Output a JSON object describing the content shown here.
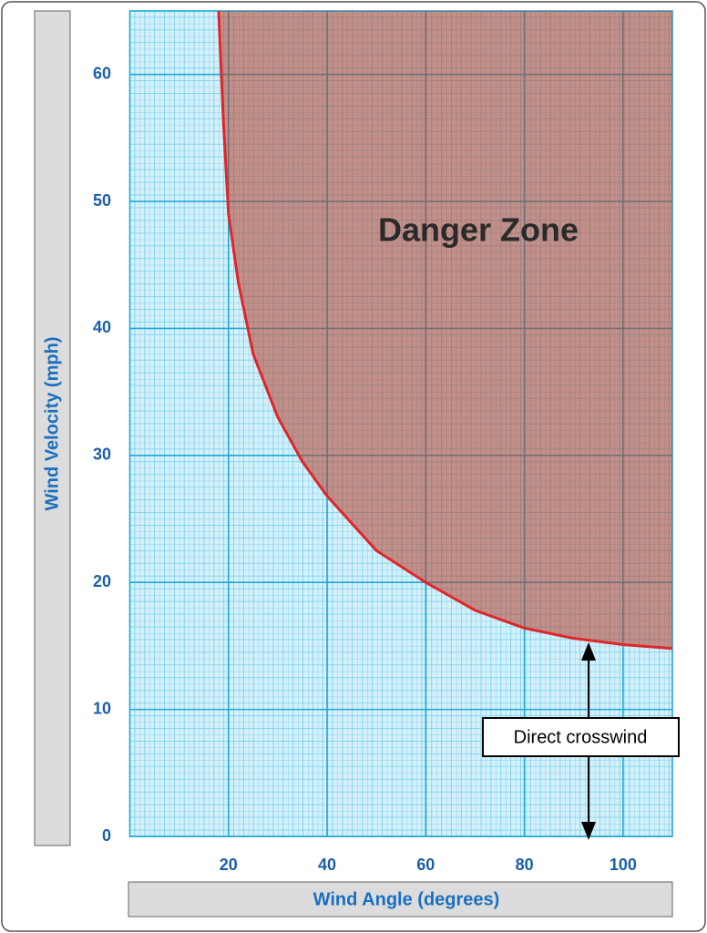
{
  "chart_data": {
    "type": "line",
    "x_label": "Wind Angle (degrees)",
    "y_label": "Wind Velocity (mph)",
    "x": [
      18,
      19,
      20,
      22,
      25,
      30,
      35,
      40,
      50,
      60,
      70,
      80,
      90,
      100,
      110
    ],
    "values": [
      65,
      56,
      49,
      43.6,
      38,
      33,
      29.5,
      26.8,
      22.5,
      20,
      17.8,
      16.4,
      15.6,
      15.1,
      14.8
    ],
    "color": "#e0262a",
    "xlim": [
      0,
      110
    ],
    "ylim": [
      0,
      65
    ],
    "xticks": [
      20,
      40,
      60,
      80,
      100
    ],
    "yticks": [
      0,
      10,
      20,
      30,
      40,
      50,
      60
    ],
    "grid": true,
    "annotations": [
      "Danger Zone",
      "Direct crosswind"
    ]
  }
}
